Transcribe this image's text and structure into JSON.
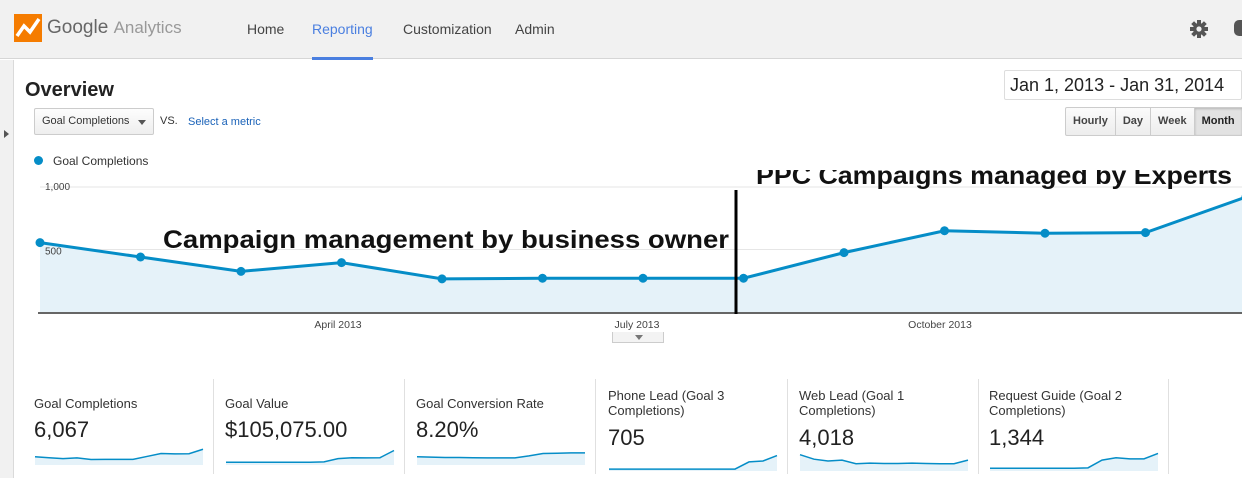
{
  "header": {
    "brand_google": "Google",
    "brand_analytics": "Analytics",
    "nav": [
      "Home",
      "Reporting",
      "Customization",
      "Admin"
    ],
    "active_nav": "Reporting",
    "accent_color": "#4a7fe0"
  },
  "page_title": "Overview",
  "date_range": "Jan 1, 2013 - Jan 31, 2014",
  "metric_selector": {
    "value": "Goal Completions",
    "vs_label": "VS.",
    "select_link": "Select a metric"
  },
  "granularity": {
    "options": [
      "Hourly",
      "Day",
      "Week",
      "Month"
    ],
    "selected": "Month"
  },
  "legend": {
    "series": "Goal Completions",
    "color": "#058dc7"
  },
  "chart_data": {
    "type": "area",
    "series": [
      {
        "name": "Goal Completions",
        "values": [
          555,
          440,
          325,
          395,
          265,
          270,
          270,
          270,
          475,
          650,
          630,
          635,
          920
        ]
      }
    ],
    "x_tick_labels": [
      "April 2013",
      "July 2013",
      "October 2013"
    ],
    "y_tick_labels": [
      "1,000",
      "500"
    ],
    "ylim": [
      0,
      1000
    ],
    "annotations": [
      "Campaign management by business owner",
      "PPC Campaigns managed by Experts"
    ],
    "line_color": "#058dc7",
    "fill_color": "#e5f2f9"
  },
  "scorecards": [
    {
      "label": "Goal Completions",
      "value": "6,067",
      "spark": [
        0.4,
        0.35,
        0.3,
        0.34,
        0.25,
        0.26,
        0.26,
        0.26,
        0.42,
        0.58,
        0.56,
        0.57,
        0.82
      ]
    },
    {
      "label": "Goal Value",
      "value": "$105,075.00",
      "spark": [
        0.1,
        0.1,
        0.1,
        0.1,
        0.1,
        0.1,
        0.1,
        0.12,
        0.3,
        0.35,
        0.34,
        0.35,
        0.75
      ]
    },
    {
      "label": "Goal Conversion Rate",
      "value": "8.20%",
      "spark": [
        0.4,
        0.38,
        0.36,
        0.36,
        0.35,
        0.34,
        0.34,
        0.34,
        0.45,
        0.58,
        0.6,
        0.62,
        0.62
      ]
    },
    {
      "label": "Phone Lead (Goal 3 Completions)",
      "value": "705",
      "spark": [
        0.05,
        0.05,
        0.05,
        0.05,
        0.05,
        0.05,
        0.05,
        0.05,
        0.05,
        0.05,
        0.45,
        0.5,
        0.8
      ]
    },
    {
      "label": "Web Lead (Goal 1 Completions)",
      "value": "4,018",
      "spark": [
        0.85,
        0.6,
        0.5,
        0.55,
        0.35,
        0.38,
        0.36,
        0.36,
        0.38,
        0.36,
        0.35,
        0.35,
        0.55
      ]
    },
    {
      "label": "Request Guide (Goal 2 Completions)",
      "value": "1,344",
      "spark": [
        0.1,
        0.1,
        0.1,
        0.1,
        0.1,
        0.1,
        0.1,
        0.12,
        0.55,
        0.68,
        0.62,
        0.62,
        0.92
      ]
    }
  ]
}
